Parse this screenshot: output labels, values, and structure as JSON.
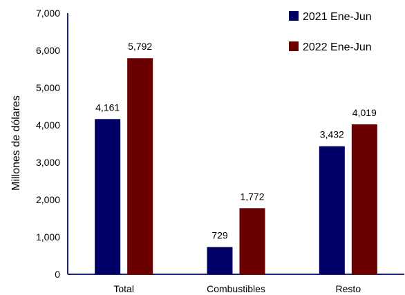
{
  "chart_data": {
    "type": "bar",
    "title": "",
    "xlabel": "",
    "ylabel": "Millones de dólares",
    "ylim": [
      0,
      7000
    ],
    "yticks": [
      0,
      1000,
      2000,
      3000,
      4000,
      5000,
      6000,
      7000
    ],
    "ytick_labels": [
      "0",
      "1,000",
      "2,000",
      "3,000",
      "4,000",
      "5,000",
      "6,000",
      "7,000"
    ],
    "grid": false,
    "legend_position": "top-right",
    "categories": [
      "Total",
      "Combustibles",
      "Resto"
    ],
    "series": [
      {
        "name": "2021 Ene-Jun",
        "color": "#000066",
        "values": [
          4161,
          729,
          3432
        ],
        "labels": [
          "4,161",
          "729",
          "3,432"
        ]
      },
      {
        "name": "2022 Ene-Jun",
        "color": "#6b0000",
        "values": [
          5792,
          1772,
          4019
        ],
        "labels": [
          "5,792",
          "1,772",
          "4,019"
        ]
      }
    ]
  }
}
